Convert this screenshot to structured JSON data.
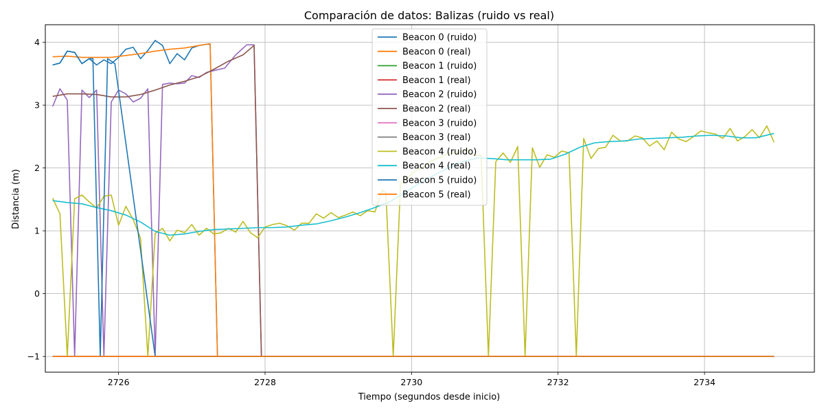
{
  "chart_data": {
    "type": "line",
    "title": "Comparación de datos: Balizas (ruido vs real)",
    "xlabel": "Tiempo (segundos desde inicio)",
    "ylabel": "Distancia (m)",
    "xlim": [
      2725.0,
      2735.5
    ],
    "ylim": [
      -1.25,
      4.28
    ],
    "xticks": [
      2726,
      2728,
      2730,
      2732,
      2734
    ],
    "yticks": [
      -1,
      0,
      1,
      2,
      3,
      4
    ],
    "grid": true,
    "legend_position": "top-center",
    "series": [
      {
        "name": "Beacon 0 (ruido)",
        "color": "#1f77b4",
        "x": [
          2725.1,
          2725.2,
          2725.3,
          2725.4,
          2725.5,
          2725.6,
          2725.7,
          2725.8,
          2725.9,
          2726.0,
          2726.1,
          2726.2,
          2726.3,
          2726.4,
          2726.5,
          2726.6,
          2726.7,
          2726.8,
          2726.9,
          2727.0,
          2727.1,
          2727.2,
          2727.25,
          2727.35,
          2727.6,
          2728.0,
          2729.0,
          2730.0,
          2731.0,
          2732.0,
          2733.0,
          2734.0,
          2734.95
        ],
        "y": [
          3.64,
          3.67,
          3.86,
          3.84,
          3.66,
          3.74,
          3.64,
          3.72,
          3.66,
          3.76,
          3.89,
          3.92,
          3.74,
          3.87,
          4.03,
          3.95,
          3.66,
          3.82,
          3.72,
          3.91,
          3.95,
          3.97,
          3.97,
          -1,
          -1,
          -1,
          -1,
          -1,
          -1,
          -1,
          -1,
          -1,
          -1
        ]
      },
      {
        "name": "Beacon 0 (real)",
        "color": "#ff7f0e",
        "x": [
          2725.1,
          2725.3,
          2725.5,
          2725.7,
          2725.9,
          2726.1,
          2726.3,
          2726.5,
          2726.7,
          2726.9,
          2727.1,
          2727.25,
          2727.35,
          2727.6,
          2728.0,
          2729.0,
          2730.0,
          2731.0,
          2732.0,
          2733.0,
          2734.0,
          2734.95
        ],
        "y": [
          3.77,
          3.78,
          3.76,
          3.76,
          3.76,
          3.79,
          3.82,
          3.86,
          3.89,
          3.91,
          3.95,
          3.98,
          -1,
          -1,
          -1,
          -1,
          -1,
          -1,
          -1,
          -1,
          -1,
          -1
        ]
      },
      {
        "name": "Beacon 1 (ruido)",
        "color": "#2ca02c",
        "x": [
          2725.1,
          2734.95
        ],
        "y": [
          -1,
          -1
        ]
      },
      {
        "name": "Beacon 1 (real)",
        "color": "#d62728",
        "x": [
          2725.1,
          2734.95
        ],
        "y": [
          -1,
          -1
        ]
      },
      {
        "name": "Beacon 2 (ruido)",
        "color": "#9467bd",
        "x": [
          2725.1,
          2725.2,
          2725.3,
          2725.4,
          2725.5,
          2725.6,
          2725.7,
          2725.8,
          2725.9,
          2726.0,
          2726.1,
          2726.2,
          2726.3,
          2726.4,
          2726.5,
          2726.6,
          2726.7,
          2726.8,
          2726.9,
          2727.0,
          2727.1,
          2727.2,
          2727.3,
          2727.45,
          2727.6,
          2727.75,
          2727.85,
          2727.95,
          2728.5,
          2729.5,
          2730.5,
          2731.5,
          2732.5,
          2733.5,
          2734.5,
          2734.95
        ],
        "y": [
          2.98,
          3.26,
          3.08,
          -1,
          3.24,
          3.12,
          3.24,
          -1,
          3.05,
          3.24,
          3.18,
          3.05,
          3.11,
          3.26,
          -1,
          3.33,
          3.35,
          3.34,
          3.35,
          3.47,
          3.44,
          3.52,
          3.55,
          3.59,
          3.8,
          3.96,
          3.96,
          -1,
          -1,
          -1,
          -1,
          -1,
          -1,
          -1,
          -1,
          -1
        ]
      },
      {
        "name": "Beacon 2 (real)",
        "color": "#8c564b",
        "x": [
          2725.1,
          2725.3,
          2725.5,
          2725.7,
          2725.9,
          2726.1,
          2726.3,
          2726.5,
          2726.7,
          2726.9,
          2727.1,
          2727.3,
          2727.5,
          2727.7,
          2727.85,
          2727.95,
          2728.5,
          2729.5,
          2730.5,
          2731.5,
          2732.5,
          2733.5,
          2734.5,
          2734.95
        ],
        "y": [
          3.14,
          3.18,
          3.18,
          3.17,
          3.13,
          3.13,
          3.17,
          3.24,
          3.32,
          3.38,
          3.45,
          3.57,
          3.7,
          3.8,
          3.95,
          -1,
          -1,
          -1,
          -1,
          -1,
          -1,
          -1,
          -1,
          -1
        ]
      },
      {
        "name": "Beacon 3 (ruido)",
        "color": "#e377c2",
        "x": [
          2725.1,
          2734.95
        ],
        "y": [
          -1,
          -1
        ]
      },
      {
        "name": "Beacon 3 (real)",
        "color": "#7f7f7f",
        "x": [
          2725.1,
          2734.95
        ],
        "y": [
          -1,
          -1
        ]
      },
      {
        "name": "Beacon 4 (ruido)",
        "color": "#bcbd22",
        "x": [
          2725.1,
          2725.2,
          2725.3,
          2725.4,
          2725.5,
          2725.6,
          2725.7,
          2725.8,
          2725.9,
          2726.0,
          2726.1,
          2726.2,
          2726.3,
          2726.4,
          2726.5,
          2726.6,
          2726.7,
          2726.8,
          2726.9,
          2727.0,
          2727.1,
          2727.2,
          2727.3,
          2727.4,
          2727.5,
          2727.6,
          2727.7,
          2727.8,
          2727.9,
          2728.0,
          2728.1,
          2728.2,
          2728.3,
          2728.4,
          2728.5,
          2728.6,
          2728.7,
          2728.8,
          2728.9,
          2729.0,
          2729.1,
          2729.2,
          2729.3,
          2729.4,
          2729.5,
          2729.6,
          2729.65,
          2729.75,
          2729.85,
          2729.95,
          2730.05,
          2730.15,
          2730.25,
          2730.35,
          2730.45,
          2730.55,
          2730.65,
          2730.75,
          2730.85,
          2730.95,
          2731.05,
          2731.15,
          2731.25,
          2731.35,
          2731.45,
          2731.55,
          2731.65,
          2731.75,
          2731.85,
          2731.95,
          2732.05,
          2732.15,
          2732.25,
          2732.35,
          2732.45,
          2732.55,
          2732.65,
          2732.75,
          2732.85,
          2732.95,
          2733.05,
          2733.15,
          2733.25,
          2733.35,
          2733.45,
          2733.55,
          2733.65,
          2733.75,
          2733.85,
          2733.95,
          2734.05,
          2734.15,
          2734.25,
          2734.35,
          2734.45,
          2734.55,
          2734.65,
          2734.75,
          2734.85,
          2734.95
        ],
        "y": [
          1.52,
          1.27,
          -1,
          1.51,
          1.57,
          1.46,
          1.36,
          1.55,
          1.57,
          1.09,
          1.39,
          1.18,
          0.88,
          -1,
          0.96,
          1.04,
          0.84,
          1.01,
          0.97,
          1.1,
          0.93,
          1.04,
          0.95,
          0.97,
          1.04,
          0.98,
          1.15,
          0.97,
          0.89,
          1.06,
          1.1,
          1.12,
          1.08,
          1.01,
          1.12,
          1.12,
          1.27,
          1.2,
          1.29,
          1.21,
          1.25,
          1.3,
          1.24,
          1.32,
          1.3,
          1.65,
          1.6,
          -1,
          1.75,
          1.85,
          1.95,
          2.0,
          2.1,
          2.15,
          2.2,
          2.25,
          2.25,
          2.3,
          2.2,
          2.2,
          -1,
          2.1,
          2.24,
          2.09,
          2.34,
          -1,
          2.32,
          2.01,
          2.21,
          2.17,
          2.27,
          2.24,
          -1,
          2.47,
          2.15,
          2.31,
          2.33,
          2.52,
          2.43,
          2.43,
          2.51,
          2.48,
          2.35,
          2.43,
          2.29,
          2.57,
          2.46,
          2.42,
          2.5,
          2.59,
          2.56,
          2.54,
          2.47,
          2.63,
          2.43,
          2.5,
          2.61,
          2.48,
          2.67,
          2.41
        ]
      },
      {
        "name": "Beacon 4 (real)",
        "color": "#17becf",
        "x": [
          2725.1,
          2725.3,
          2725.5,
          2725.7,
          2725.9,
          2726.1,
          2726.3,
          2726.5,
          2726.7,
          2726.9,
          2727.1,
          2727.3,
          2727.5,
          2727.7,
          2727.9,
          2728.1,
          2728.3,
          2728.5,
          2728.7,
          2728.9,
          2729.1,
          2729.3,
          2729.5,
          2729.7,
          2729.9,
          2730.1,
          2730.3,
          2730.5,
          2730.7,
          2730.9,
          2731.1,
          2731.3,
          2731.5,
          2731.7,
          2731.9,
          2732.1,
          2732.3,
          2732.5,
          2732.7,
          2732.9,
          2733.1,
          2733.3,
          2733.5,
          2733.7,
          2733.9,
          2734.1,
          2734.3,
          2734.5,
          2734.7,
          2734.95
        ],
        "y": [
          1.48,
          1.45,
          1.43,
          1.37,
          1.32,
          1.25,
          1.14,
          0.99,
          0.93,
          0.95,
          0.99,
          1.02,
          1.03,
          1.04,
          1.05,
          1.05,
          1.06,
          1.09,
          1.11,
          1.16,
          1.22,
          1.29,
          1.37,
          1.46,
          1.6,
          1.75,
          1.88,
          2.0,
          2.1,
          2.16,
          2.15,
          2.13,
          2.13,
          2.13,
          2.14,
          2.22,
          2.33,
          2.4,
          2.42,
          2.43,
          2.46,
          2.47,
          2.48,
          2.49,
          2.51,
          2.52,
          2.51,
          2.48,
          2.48,
          2.55
        ]
      },
      {
        "name": "Beacon 5 (ruido)",
        "color": "#1f77b4",
        "x": [
          2725.1,
          2725.2,
          2725.3,
          2725.4,
          2725.5,
          2725.6,
          2725.65,
          2725.75,
          2725.85,
          2725.95,
          2726.5,
          2727.5,
          2728.5,
          2729.5,
          2730.5,
          2731.5,
          2732.5,
          2733.5,
          2734.5,
          2734.95
        ],
        "y": [
          3.64,
          3.67,
          3.86,
          3.84,
          3.66,
          3.74,
          3.74,
          -1,
          3.74,
          3.66,
          -1,
          -1,
          -1,
          -1,
          -1,
          -1,
          -1,
          -1,
          -1,
          -1
        ]
      },
      {
        "name": "Beacon 5 (real)",
        "color": "#ff7f0e",
        "x": [
          2725.1,
          2726.0,
          2727.0,
          2728.0,
          2729.0,
          2730.0,
          2731.0,
          2732.0,
          2733.0,
          2734.0,
          2734.95
        ],
        "y": [
          -1,
          -1,
          -1,
          -1,
          -1,
          -1,
          -1,
          -1,
          -1,
          -1,
          -1
        ]
      }
    ]
  }
}
